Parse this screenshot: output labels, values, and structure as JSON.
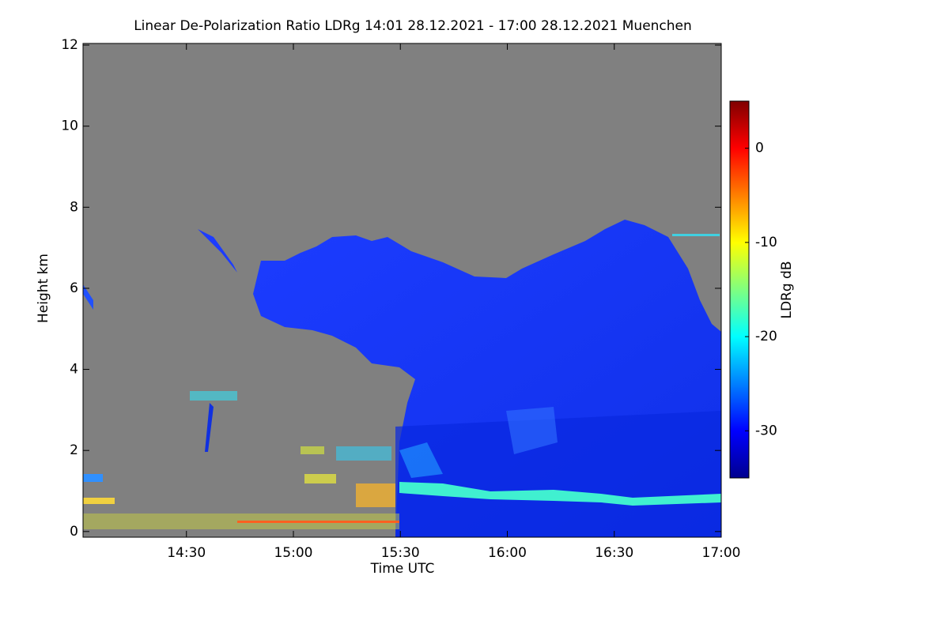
{
  "chart_data": {
    "type": "heatmap",
    "title": "Linear De-Polarization Ratio LDRg   14:01 28.12.2021 - 17:00 28.12.2021 Muenchen",
    "x_label": "Time UTC",
    "y_label": "Height km",
    "colorbar_label": "LDRg dB",
    "colormap": "jet",
    "xlim": [
      14.0167,
      17.0
    ],
    "xticks": [
      {
        "value": 14.5,
        "label": "14:30"
      },
      {
        "value": 15.0,
        "label": "15:00"
      },
      {
        "value": 15.5,
        "label": "15:30"
      },
      {
        "value": 16.0,
        "label": "16:00"
      },
      {
        "value": 16.5,
        "label": "16:30"
      },
      {
        "value": 17.0,
        "label": "17:00"
      }
    ],
    "ylim": [
      -0.14,
      12.04
    ],
    "yticks": [
      0,
      2,
      4,
      6,
      8,
      10,
      12
    ],
    "clim": [
      -35,
      5
    ],
    "cticks": [
      0,
      -10,
      -20,
      -30
    ]
  }
}
